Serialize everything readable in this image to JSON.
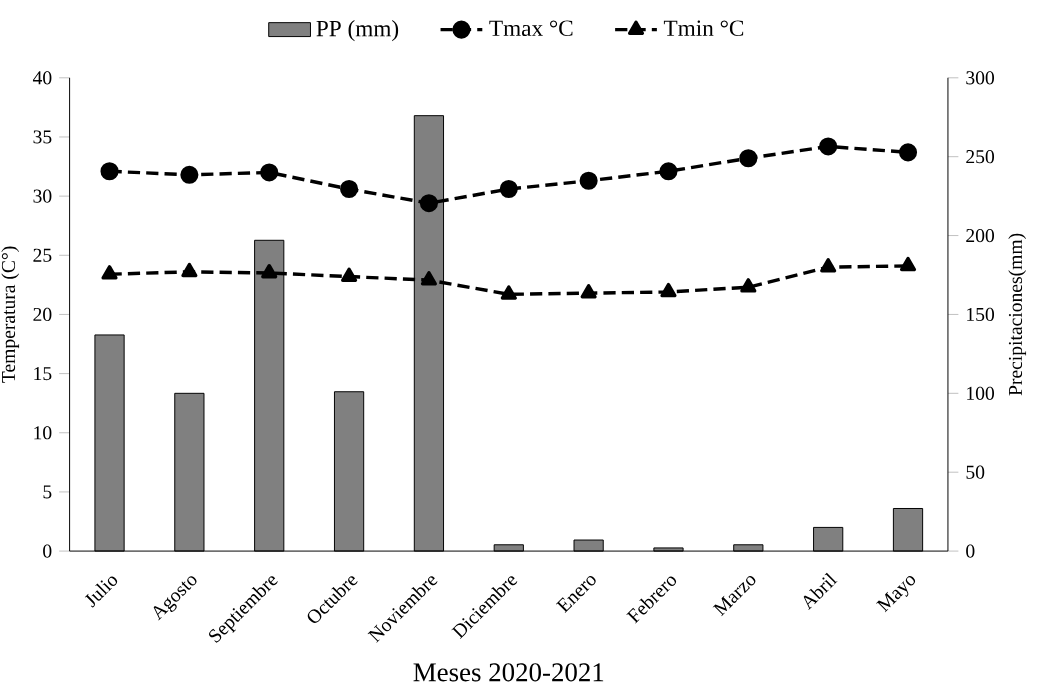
{
  "chart_data": {
    "type": "line",
    "xlabel": "Meses 2020-2021",
    "ylabel": "Temperatura (C°)",
    "y2label": "Precipitaciones(mm)",
    "categories": [
      "Julio",
      "Agosto",
      "Septiembre",
      "Octubre",
      "Noviembre",
      "Diciembre",
      "Enero",
      "Febrero",
      "Marzo",
      "Abril",
      "Mayo"
    ],
    "series": [
      {
        "name": "PP (mm)",
        "type": "bar",
        "axis": "y2",
        "color": "#808080",
        "values": [
          137,
          100,
          197,
          101,
          276,
          4,
          7,
          2,
          4,
          15,
          27
        ]
      },
      {
        "name": "Tmax °C",
        "color": "#000000",
        "marker": "circle",
        "line_style": "dashed",
        "values": [
          32.1,
          31.8,
          32.0,
          30.6,
          29.4,
          30.6,
          31.3,
          32.1,
          33.2,
          34.2,
          33.7
        ]
      },
      {
        "name": "Tmin °C",
        "color": "#000000",
        "marker": "triangle",
        "line_style": "dashed",
        "values": [
          23.4,
          23.6,
          23.5,
          23.2,
          22.9,
          21.7,
          21.8,
          21.9,
          22.3,
          24.0,
          24.1
        ]
      }
    ],
    "ylim": [
      0,
      40
    ],
    "yticks": [
      0,
      5,
      10,
      15,
      20,
      25,
      30,
      35,
      40
    ],
    "y2lim": [
      0,
      300
    ],
    "y2ticks": [
      0,
      50,
      100,
      150,
      200,
      250,
      300
    ],
    "legend": "top"
  }
}
